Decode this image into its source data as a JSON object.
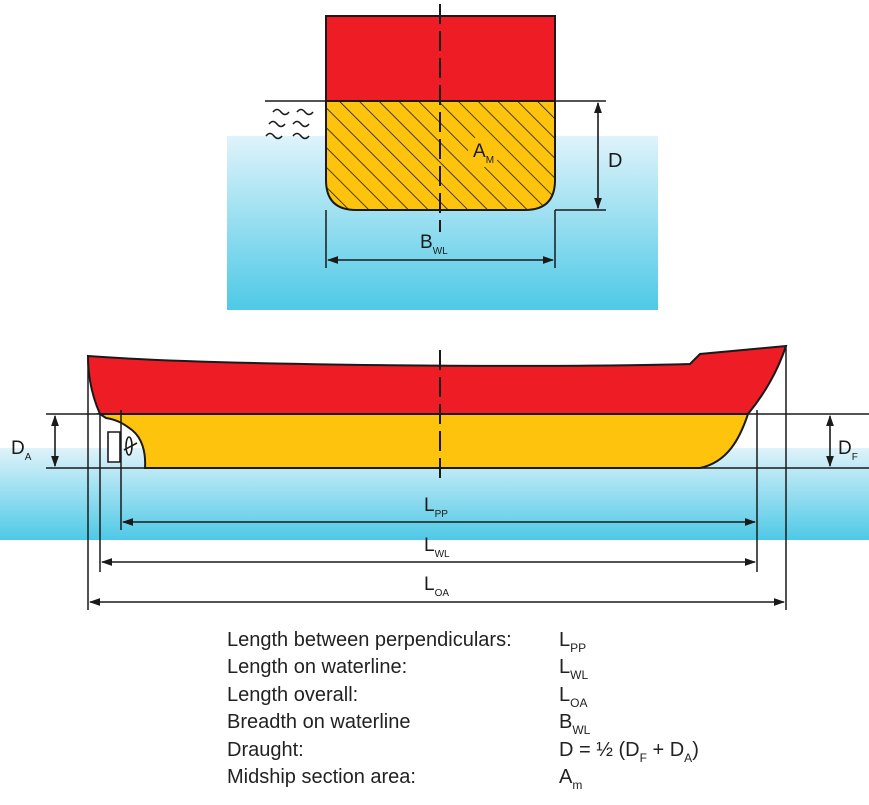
{
  "colors": {
    "water_top": "#dff3fa",
    "water_bottom": "#4ec9e6",
    "hull_above_water": "#ee1c25",
    "hull_below_water": "#fec40d",
    "outline": "#1a1a1a"
  },
  "section": {
    "area_label": "A",
    "area_sub": "M",
    "draught_label": "D",
    "breadth_label": "B",
    "breadth_sub": "WL"
  },
  "profile": {
    "aft_draught_label": "D",
    "aft_draught_sub": "A",
    "fwd_draught_label": "D",
    "fwd_draught_sub": "F",
    "lpp_label": "L",
    "lpp_sub": "PP",
    "lwl_label": "L",
    "lwl_sub": "WL",
    "loa_label": "L",
    "loa_sub": "OA"
  },
  "legend": [
    {
      "label": "Length between perpendiculars:",
      "symbol": "L",
      "sub": "PP",
      "suffix": ""
    },
    {
      "label": "Length on waterline:",
      "symbol": "L",
      "sub": "WL",
      "suffix": ""
    },
    {
      "label": "Length overall:",
      "symbol": "L",
      "sub": "OA",
      "suffix": ""
    },
    {
      "label": "Breadth on waterline",
      "symbol": "B",
      "sub": "WL",
      "suffix": ""
    },
    {
      "label": "Draught:",
      "formula": true,
      "formula_prefix": "D = ½ (D",
      "formula_sub1": "F",
      "formula_mid": " + D",
      "formula_sub2": "A",
      "formula_suffix": ")"
    },
    {
      "label": "Midship section area:",
      "symbol": "A",
      "sub": "m",
      "suffix": ""
    }
  ]
}
